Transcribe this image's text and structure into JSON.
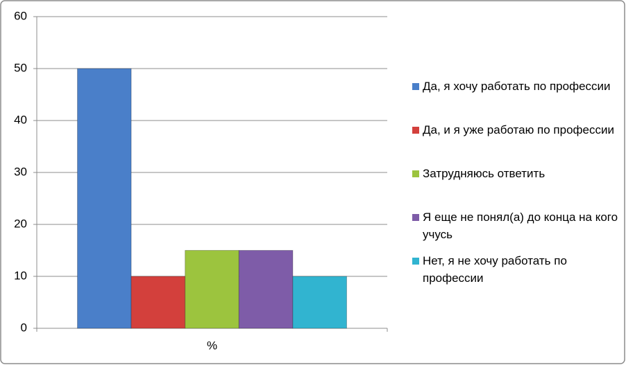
{
  "chart_data": {
    "type": "bar",
    "categories": [
      "%"
    ],
    "series": [
      {
        "name": "Да, я хочу работать по профессии",
        "color": "#4a7fc9",
        "values": [
          50
        ]
      },
      {
        "name": "Да, и я уже работаю по профессии",
        "color": "#d3403c",
        "values": [
          10
        ]
      },
      {
        "name": "Затрудняюсь ответить",
        "color": "#9cc43e",
        "values": [
          15
        ]
      },
      {
        "name": "Я еще не понял(а) до конца на кого учусь",
        "color": "#7e5ca8",
        "values": [
          15
        ]
      },
      {
        "name": "Нет, я не хочу работать по профессии",
        "color": "#31b4d0",
        "values": [
          10
        ]
      }
    ],
    "ylim": [
      0,
      60
    ],
    "yticks": [
      0,
      10,
      20,
      30,
      40,
      50,
      60
    ],
    "grid": true,
    "legend": "right"
  }
}
